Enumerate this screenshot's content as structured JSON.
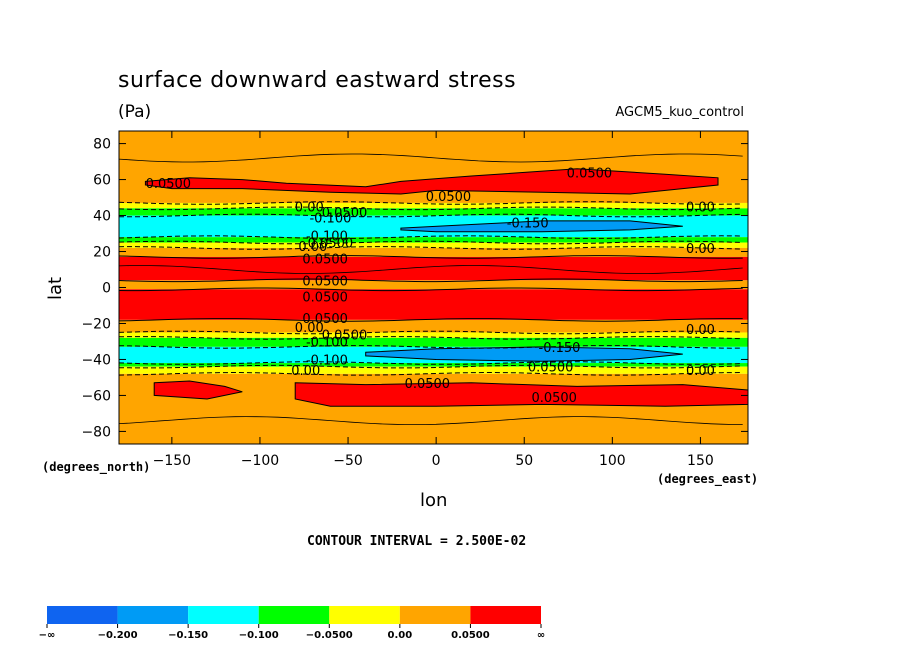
{
  "chart_data": {
    "type": "heatmap",
    "title": "surface downward eastward stress",
    "units": "(Pa)",
    "run_label": "AGCM5_kuo_control",
    "xlabel": "lon",
    "ylabel": "lat",
    "x_units_note": "(degrees_east)",
    "y_units_note": "(degrees_north)",
    "contour_interval": "CONTOUR INTERVAL = 2.500E-02",
    "xlim": [
      -180,
      177
    ],
    "ylim": [
      -87,
      87
    ],
    "x_ticks": [
      -150,
      -100,
      -50,
      0,
      50,
      100,
      150
    ],
    "x_tick_labels": [
      "−150",
      "−100",
      "−50",
      "0",
      "50",
      "100",
      "150"
    ],
    "y_ticks": [
      80,
      60,
      40,
      20,
      0,
      -20,
      -40,
      -60,
      -80
    ],
    "y_tick_labels": [
      "80",
      "60",
      "40",
      "20",
      "0",
      "−20",
      "−40",
      "−60",
      "−80"
    ],
    "bands": [
      {
        "lat_from": 87,
        "lat_to": 47,
        "level": 0.025
      },
      {
        "lat_from": 47,
        "lat_to": 44,
        "level": -0.025
      },
      {
        "lat_from": 44,
        "lat_to": 40,
        "level": -0.075
      },
      {
        "lat_from": 40,
        "lat_to": 28,
        "level": -0.125
      },
      {
        "lat_from": 28,
        "lat_to": 25,
        "level": -0.075
      },
      {
        "lat_from": 25,
        "lat_to": 22,
        "level": -0.025
      },
      {
        "lat_from": 22,
        "lat_to": 17,
        "level": 0.025
      },
      {
        "lat_from": 17,
        "lat_to": 4,
        "level": 0.075
      },
      {
        "lat_from": 4,
        "lat_to": -1,
        "level": 0.025
      },
      {
        "lat_from": -1,
        "lat_to": -18,
        "level": 0.075
      },
      {
        "lat_from": -18,
        "lat_to": -25,
        "level": 0.025
      },
      {
        "lat_from": -25,
        "lat_to": -28,
        "level": -0.025
      },
      {
        "lat_from": -28,
        "lat_to": -33,
        "level": -0.075
      },
      {
        "lat_from": -33,
        "lat_to": -42,
        "level": -0.125
      },
      {
        "lat_from": -42,
        "lat_to": -44,
        "level": -0.075
      },
      {
        "lat_from": -44,
        "lat_to": -48,
        "level": -0.025
      },
      {
        "lat_from": -48,
        "lat_to": -87,
        "level": 0.025
      }
    ],
    "patches": [
      {
        "level": 0.075,
        "lon": [
          -165,
          -140,
          -110,
          -85,
          -40,
          -20,
          20,
          80,
          130,
          160,
          160,
          110,
          60,
          0,
          -20,
          -60,
          -110,
          -150,
          -165
        ],
        "lat": [
          59,
          61,
          60,
          58,
          56,
          59,
          62,
          66,
          63,
          61,
          57,
          52,
          53,
          54,
          52,
          53,
          55,
          55,
          57
        ]
      },
      {
        "level": 0.075,
        "lon": [
          -160,
          -140,
          -120,
          -110,
          -130,
          -160
        ],
        "lat": [
          -53,
          -52,
          -55,
          -58,
          -62,
          -60
        ]
      },
      {
        "level": 0.075,
        "lon": [
          -80,
          -40,
          20,
          80,
          140,
          177,
          177,
          130,
          60,
          0,
          -60,
          -80
        ],
        "lat": [
          -53,
          -54,
          -53,
          -55,
          -54,
          -57,
          -65,
          -66,
          -65,
          -66,
          -66,
          -62
        ]
      },
      {
        "level": -0.175,
        "lon": [
          -20,
          20,
          60,
          110,
          140,
          110,
          60,
          0,
          -20
        ],
        "lat": [
          33,
          35,
          37,
          37,
          34,
          32,
          31,
          31,
          32
        ]
      },
      {
        "level": -0.175,
        "lon": [
          -40,
          0,
          60,
          110,
          140,
          110,
          60,
          0,
          -40
        ],
        "lat": [
          -36,
          -34,
          -33,
          -34,
          -37,
          -40,
          -41,
          -40,
          -38
        ]
      }
    ],
    "contour_labels": [
      {
        "text": "0.0500",
        "lon": -152,
        "lat": 58
      },
      {
        "text": "0.0500",
        "lon": 87,
        "lat": 64
      },
      {
        "text": "0.0500",
        "lon": 7,
        "lat": 51
      },
      {
        "text": "0.00",
        "lon": -72,
        "lat": 45
      },
      {
        "text": "0.0500",
        "lon": -52,
        "lat": 42
      },
      {
        "text": "-0.100",
        "lon": -60,
        "lat": 39
      },
      {
        "text": "0.00",
        "lon": 150,
        "lat": 45
      },
      {
        "text": "-0.150",
        "lon": 52,
        "lat": 36
      },
      {
        "text": "-0.100",
        "lon": -62,
        "lat": 29
      },
      {
        "text": "0.0500",
        "lon": -60,
        "lat": 25
      },
      {
        "text": "0.00",
        "lon": -70,
        "lat": 23
      },
      {
        "text": "0.00",
        "lon": 150,
        "lat": 22
      },
      {
        "text": "0.0500",
        "lon": -63,
        "lat": 16
      },
      {
        "text": "0.0500",
        "lon": -63,
        "lat": 4
      },
      {
        "text": "0.0500",
        "lon": -63,
        "lat": -5
      },
      {
        "text": "0.0500",
        "lon": -63,
        "lat": -17
      },
      {
        "text": "0.00",
        "lon": -72,
        "lat": -22
      },
      {
        "text": "0.0500",
        "lon": -52,
        "lat": -26
      },
      {
        "text": "-0.100",
        "lon": -62,
        "lat": -30
      },
      {
        "text": "0.00",
        "lon": 150,
        "lat": -23
      },
      {
        "text": "-0.150",
        "lon": 70,
        "lat": -33
      },
      {
        "text": "-0.100",
        "lon": -62,
        "lat": -40
      },
      {
        "text": "0.0500",
        "lon": 65,
        "lat": -44
      },
      {
        "text": "0.00",
        "lon": -74,
        "lat": -46
      },
      {
        "text": "0.00",
        "lon": 150,
        "lat": -46
      },
      {
        "text": "0.0500",
        "lon": -5,
        "lat": -53
      },
      {
        "text": "0.0500",
        "lon": 67,
        "lat": -61
      }
    ],
    "colorbar": {
      "levels": [
        "−∞",
        "−0.200",
        "−0.150",
        "−0.100",
        "−0.0500",
        "0.00",
        "0.0500",
        "∞"
      ],
      "colors": [
        "#0f64f0",
        "#009bf5",
        "#00ffff",
        "#00ff00",
        "#ffff00",
        "#ffa500",
        "#ff0000"
      ]
    }
  }
}
